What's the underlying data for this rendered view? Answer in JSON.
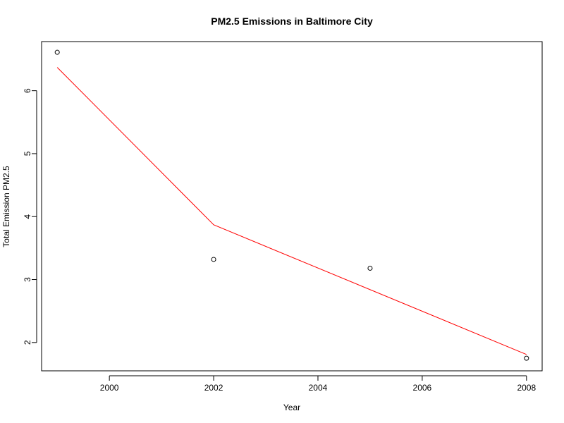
{
  "chart_data": {
    "type": "scatter",
    "title": "PM2.5 Emissions in Baltimore City",
    "xlabel": "Year",
    "ylabel": "Total Emission PM2.5",
    "xlim": [
      1998.7,
      2008.3
    ],
    "ylim": [
      1.55,
      6.78
    ],
    "x_ticks": [
      2000,
      2002,
      2004,
      2006,
      2008
    ],
    "y_ticks": [
      2,
      3,
      4,
      5,
      6
    ],
    "grid": false,
    "series": [
      {
        "type": "scatter",
        "marker": "open-circle",
        "color": "#000000",
        "x": [
          1999,
          2002,
          2005,
          2008
        ],
        "y": [
          6.61,
          3.32,
          3.18,
          1.75
        ]
      },
      {
        "type": "line",
        "color": "#ff0000",
        "x": [
          1999,
          2002,
          2008
        ],
        "y": [
          6.37,
          3.87,
          1.81
        ]
      }
    ]
  }
}
